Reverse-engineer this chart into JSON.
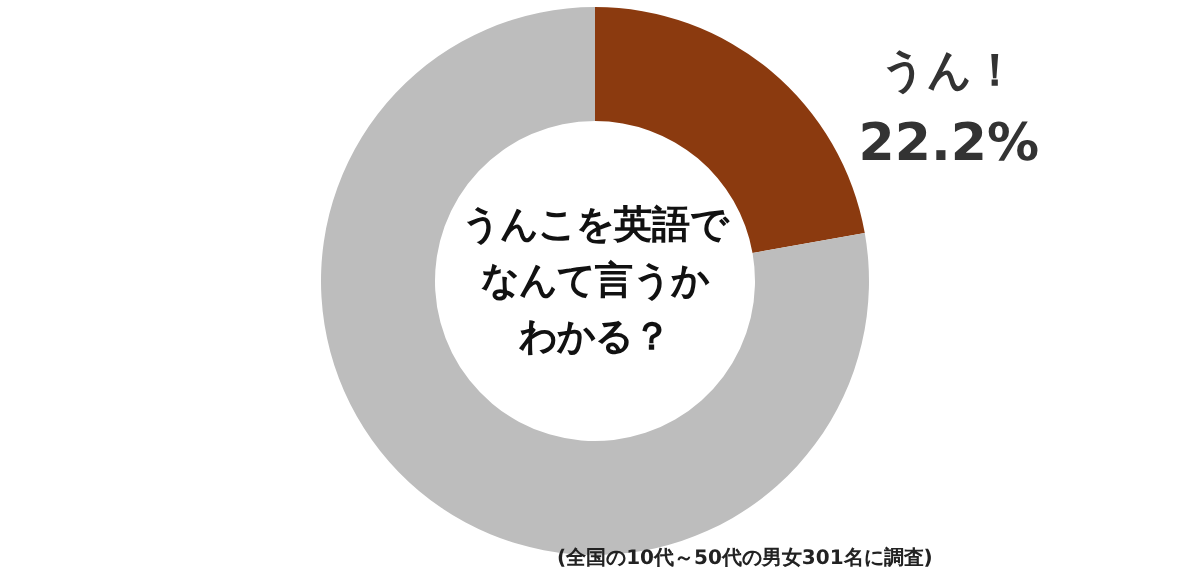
{
  "chart_data": {
    "type": "donut",
    "title": "うんこを英語でなんて言うかわかる？",
    "categories": [
      "うん！",
      null
    ],
    "values": [
      22.2,
      77.8
    ],
    "colors": [
      "#8b3a0f",
      "#bdbdbd"
    ],
    "value_labels": [
      "22.2%",
      null
    ],
    "annotations": [
      "(全国の10代～50代の男女301名に調査)"
    ]
  }
}
